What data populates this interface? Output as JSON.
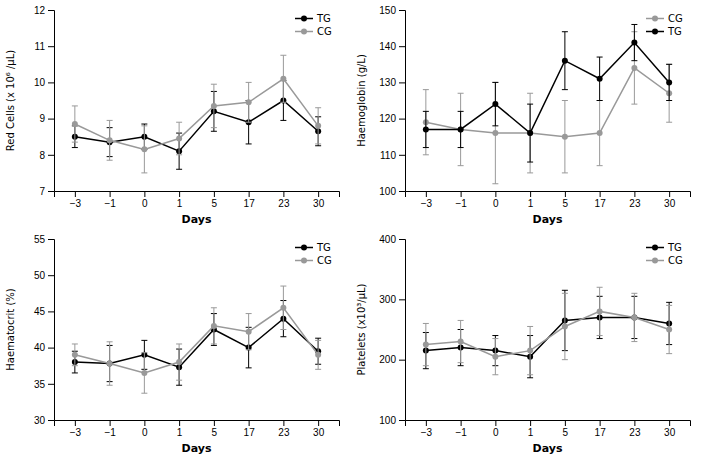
{
  "chart_data": [
    {
      "type": "line",
      "categories": [
        "−3",
        "−1",
        "0",
        "1",
        "5",
        "17",
        "23",
        "30"
      ],
      "xlabel": "Days",
      "ylabel": "Red Cells (x 10⁶ /µL)",
      "ylim": [
        7,
        12
      ],
      "yticks": [
        7,
        8,
        9,
        10,
        11,
        12
      ],
      "legend": "upper right",
      "grid": false,
      "series": [
        {
          "name": "TG",
          "color": "#000000",
          "marker": "circle",
          "values": [
            8.5,
            8.35,
            8.5,
            8.1,
            9.2,
            8.9,
            9.5,
            8.65
          ],
          "errors": [
            0.3,
            0.4,
            0.35,
            0.5,
            0.55,
            0.6,
            0.55,
            0.4
          ]
        },
        {
          "name": "CG",
          "color": "#999999",
          "marker": "circle",
          "values": [
            8.85,
            8.4,
            8.15,
            8.45,
            9.35,
            9.45,
            10.1,
            8.8
          ],
          "errors": [
            0.5,
            0.55,
            0.65,
            0.45,
            0.6,
            0.55,
            0.65,
            0.5
          ]
        }
      ]
    },
    {
      "type": "line",
      "categories": [
        "−3",
        "−1",
        "0",
        "1",
        "5",
        "17",
        "23",
        "30"
      ],
      "xlabel": "Days",
      "ylabel": "Haemoglobin (g/L)",
      "ylim": [
        100,
        150
      ],
      "yticks": [
        100,
        110,
        120,
        130,
        140,
        150
      ],
      "legend": "upper right",
      "grid": false,
      "series": [
        {
          "name": "CG",
          "color": "#999999",
          "marker": "circle",
          "values": [
            119,
            117,
            116,
            116,
            115,
            116,
            134,
            127
          ],
          "errors": [
            9,
            10,
            14,
            11,
            10,
            9,
            10,
            8
          ]
        },
        {
          "name": "TG",
          "color": "#000000",
          "marker": "circle",
          "values": [
            117,
            117,
            124,
            116,
            136,
            131,
            141,
            130
          ],
          "errors": [
            5,
            5,
            6,
            8,
            8,
            6,
            5,
            5
          ]
        }
      ]
    },
    {
      "type": "line",
      "categories": [
        "−3",
        "−1",
        "0",
        "1",
        "5",
        "17",
        "23",
        "30"
      ],
      "xlabel": "Days",
      "ylabel": "Haematocrit (%)",
      "ylim": [
        30,
        55
      ],
      "yticks": [
        30,
        35,
        40,
        45,
        50,
        55
      ],
      "legend": "upper right",
      "grid": false,
      "series": [
        {
          "name": "TG",
          "color": "#000000",
          "marker": "circle",
          "values": [
            38.0,
            37.8,
            39.0,
            37.3,
            42.5,
            40.0,
            44.0,
            39.5
          ],
          "errors": [
            1.5,
            2.5,
            2.0,
            2.5,
            2.2,
            2.8,
            2.5,
            1.8
          ]
        },
        {
          "name": "CG",
          "color": "#999999",
          "marker": "circle",
          "values": [
            39.0,
            37.8,
            36.5,
            38.0,
            43.0,
            42.2,
            45.5,
            39.0
          ],
          "errors": [
            1.5,
            3.0,
            2.8,
            2.5,
            2.5,
            2.5,
            3.0,
            2.0
          ]
        }
      ]
    },
    {
      "type": "line",
      "categories": [
        "−3",
        "−1",
        "0",
        "1",
        "5",
        "17",
        "23",
        "30"
      ],
      "xlabel": "Days",
      "ylabel": "Platelets (x10³/µL)",
      "ylim": [
        100,
        400
      ],
      "yticks": [
        100,
        200,
        300,
        400
      ],
      "legend": "upper right",
      "grid": false,
      "series": [
        {
          "name": "TG",
          "color": "#000000",
          "marker": "circle",
          "values": [
            215,
            220,
            215,
            205,
            265,
            270,
            270,
            260
          ],
          "errors": [
            30,
            30,
            25,
            35,
            50,
            35,
            35,
            35
          ]
        },
        {
          "name": "CG",
          "color": "#999999",
          "marker": "circle",
          "values": [
            225,
            230,
            205,
            215,
            255,
            280,
            270,
            250
          ],
          "errors": [
            35,
            35,
            30,
            40,
            55,
            40,
            40,
            40
          ]
        }
      ]
    }
  ]
}
